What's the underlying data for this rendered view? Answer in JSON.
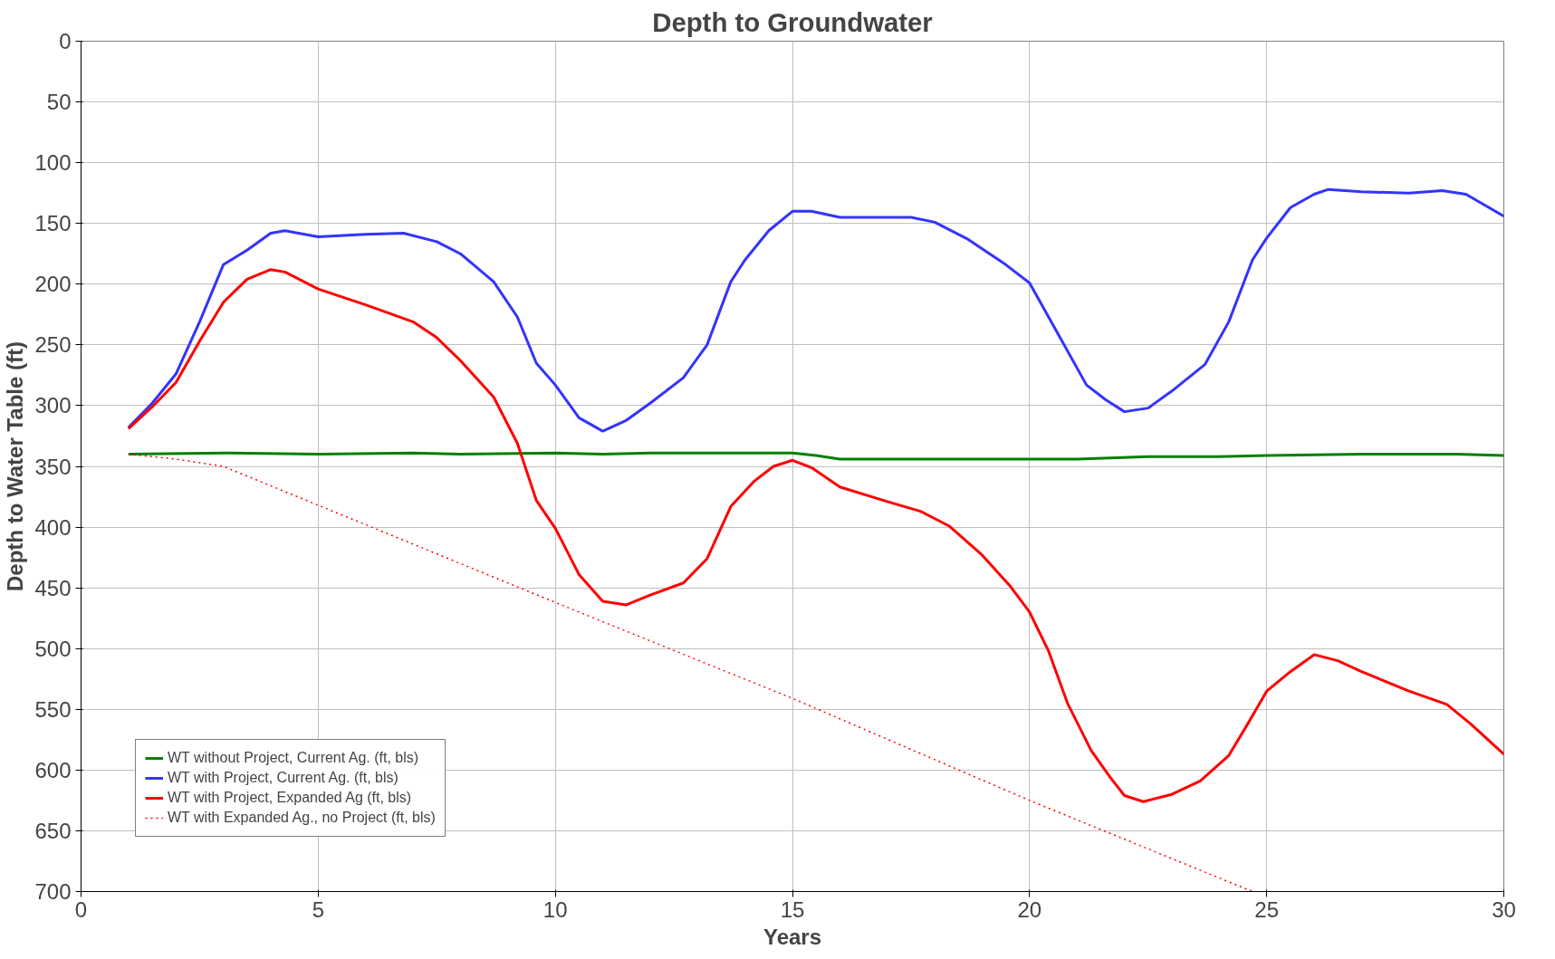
{
  "chart_data": {
    "type": "line",
    "title": "Depth to Groundwater",
    "xlabel": "Years",
    "ylabel": "Depth to Water Table (ft)",
    "xlim": [
      0,
      30
    ],
    "xticks": [
      0,
      5,
      10,
      15,
      20,
      25,
      30
    ],
    "ylim": [
      700,
      0
    ],
    "yticks": [
      0,
      50,
      100,
      150,
      200,
      250,
      300,
      350,
      400,
      450,
      500,
      550,
      600,
      650,
      700
    ],
    "grid": true,
    "legend": "bottom left",
    "series": [
      {
        "name": "WT without Project, Current Ag. (ft, bls)",
        "color": "#008000",
        "line_style": "solid",
        "x": [
          1,
          3,
          5,
          7,
          8,
          10,
          11,
          12,
          15,
          15.5,
          16,
          21,
          22.5,
          24,
          25,
          27,
          29,
          30
        ],
        "values": [
          340,
          339,
          340,
          339,
          340,
          339,
          340,
          339,
          339,
          341,
          344,
          344,
          342,
          342,
          341,
          340,
          340,
          341
        ]
      },
      {
        "name": "WT with Project, Current Ag. (ft, bls)",
        "color": "#3333ff",
        "line_style": "solid",
        "x": [
          1,
          1.5,
          2,
          2.5,
          3,
          3.5,
          4,
          4.3,
          5,
          6,
          6.8,
          7.5,
          8,
          8.7,
          9.2,
          9.6,
          10,
          10.5,
          11,
          11.5,
          12,
          12.7,
          13.2,
          13.7,
          14,
          14.5,
          15,
          15.4,
          16,
          17.5,
          18,
          18.7,
          19.5,
          20,
          20.6,
          21.2,
          21.6,
          22,
          22.5,
          23,
          23.7,
          24.2,
          24.7,
          25,
          25.5,
          26,
          26.3,
          27,
          28,
          28.7,
          29.2,
          30
        ],
        "values": [
          318,
          298,
          274,
          231,
          184,
          172,
          158,
          156,
          161,
          159,
          158,
          165,
          175,
          198,
          227,
          265,
          283,
          310,
          321,
          312,
          298,
          277,
          250,
          198,
          180,
          156,
          140,
          140,
          145,
          145,
          149,
          163,
          184,
          199,
          241,
          283,
          295,
          305,
          302,
          288,
          266,
          231,
          180,
          162,
          137,
          126,
          122,
          124,
          125,
          123,
          126,
          144
        ]
      },
      {
        "name": "WT with Project, Expanded Ag (ft, bls)",
        "color": "#ff0000",
        "line_style": "solid",
        "x": [
          1,
          1.5,
          2,
          2.5,
          3,
          3.5,
          4,
          4.3,
          5,
          6,
          7,
          7.5,
          8,
          8.7,
          9.2,
          9.6,
          10,
          10.5,
          11,
          11.5,
          12,
          12.7,
          13.2,
          13.7,
          14.2,
          14.6,
          15,
          15.4,
          16,
          17,
          17.7,
          18.3,
          19,
          19.6,
          20,
          20.4,
          20.8,
          21.3,
          21.7,
          22,
          22.4,
          23,
          23.6,
          24.2,
          24.6,
          25,
          25.5,
          26,
          26.5,
          27,
          28,
          28.8,
          29.3,
          30
        ],
        "values": [
          319,
          301,
          281,
          247,
          215,
          196,
          188,
          190,
          204,
          217,
          231,
          244,
          263,
          293,
          331,
          378,
          401,
          439,
          461,
          464,
          456,
          446,
          426,
          383,
          362,
          350,
          345,
          351,
          367,
          379,
          387,
          399,
          423,
          449,
          470,
          502,
          545,
          584,
          606,
          621,
          626,
          620,
          609,
          588,
          562,
          535,
          519,
          505,
          510,
          519,
          535,
          546,
          562,
          587
        ]
      },
      {
        "name": "WT with Expanded Ag., no Project (ft, bls)",
        "color": "#ff0000",
        "line_style": "dotted",
        "x": [
          1,
          2,
          3,
          5,
          10,
          15,
          20,
          24.7
        ],
        "values": [
          340,
          344,
          350,
          382,
          462,
          541,
          625,
          700
        ]
      }
    ]
  }
}
